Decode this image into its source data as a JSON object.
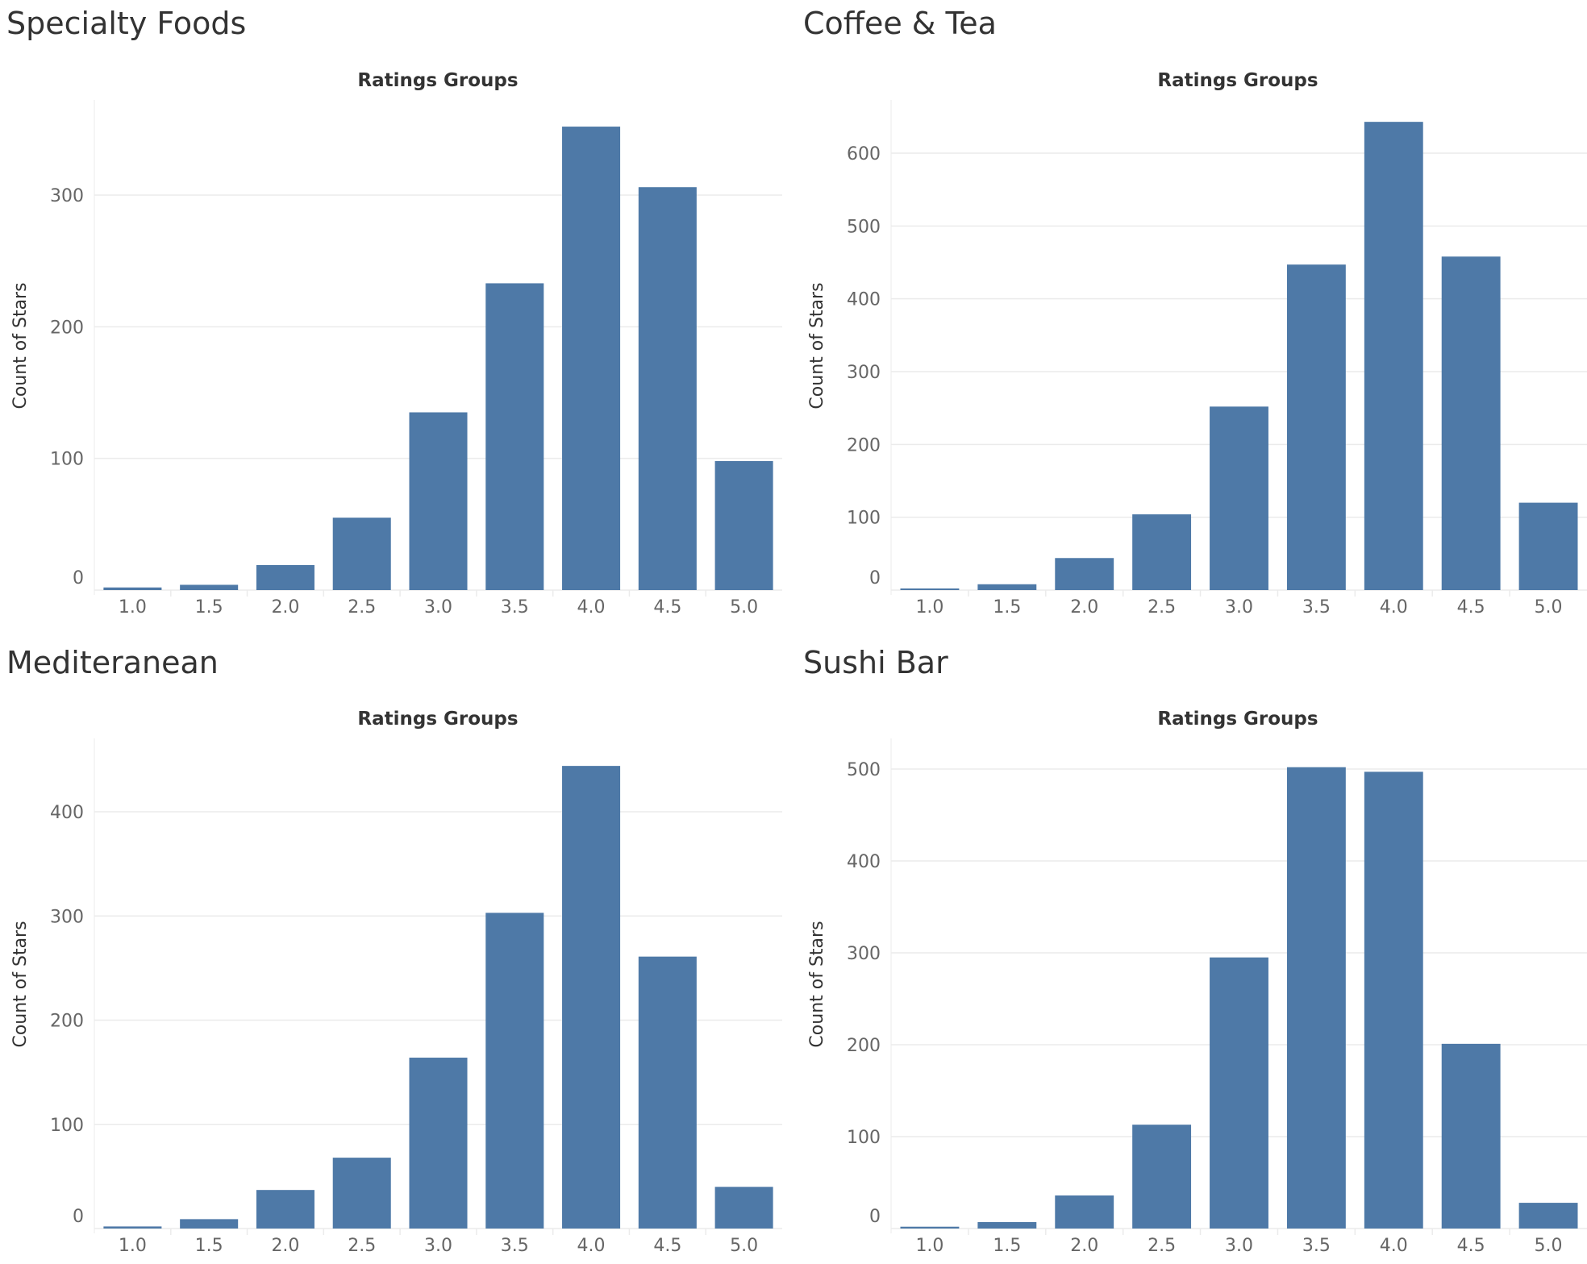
{
  "colors": {
    "bar": "#4e79a7",
    "grid": "#ebebeb",
    "text_dark": "#333333",
    "text_tick": "#666666"
  },
  "chart_data": [
    {
      "type": "bar",
      "title": "Specialty Foods",
      "xlabel": "Ratings Groups",
      "ylabel": "Count of Stars",
      "categories": [
        "1.0",
        "1.5",
        "2.0",
        "2.5",
        "3.0",
        "3.5",
        "4.0",
        "4.5",
        "5.0"
      ],
      "values": [
        2,
        4,
        19,
        55,
        135,
        233,
        352,
        306,
        98
      ],
      "yticks": [
        0,
        100,
        200,
        300
      ],
      "ylim": [
        0,
        370
      ],
      "grid": true
    },
    {
      "type": "bar",
      "title": "Coffee & Tea",
      "xlabel": "Ratings Groups",
      "ylabel": "Count of Stars",
      "categories": [
        "1.0",
        "1.5",
        "2.0",
        "2.5",
        "3.0",
        "3.5",
        "4.0",
        "4.5",
        "5.0"
      ],
      "values": [
        2,
        8,
        44,
        104,
        252,
        447,
        643,
        458,
        120
      ],
      "yticks": [
        0,
        100,
        200,
        300,
        400,
        500,
        600
      ],
      "ylim": [
        0,
        670
      ],
      "grid": true
    },
    {
      "type": "bar",
      "title": "Mediteranean",
      "xlabel": "Ratings Groups",
      "ylabel": "Count of Stars",
      "categories": [
        "1.0",
        "1.5",
        "2.0",
        "2.5",
        "3.0",
        "3.5",
        "4.0",
        "4.5",
        "5.0"
      ],
      "values": [
        2,
        9,
        37,
        68,
        164,
        303,
        444,
        261,
        40
      ],
      "yticks": [
        0,
        100,
        200,
        300,
        400
      ],
      "ylim": [
        0,
        470
      ],
      "grid": true
    },
    {
      "type": "bar",
      "title": "Sushi Bar",
      "xlabel": "Ratings Groups",
      "ylabel": "Count of Stars",
      "categories": [
        "1.0",
        "1.5",
        "2.0",
        "2.5",
        "3.0",
        "3.5",
        "4.0",
        "4.5",
        "5.0"
      ],
      "values": [
        2,
        7,
        36,
        113,
        295,
        502,
        497,
        201,
        28
      ],
      "yticks": [
        0,
        100,
        200,
        300,
        400,
        500
      ],
      "ylim": [
        0,
        525
      ],
      "grid": true
    }
  ]
}
